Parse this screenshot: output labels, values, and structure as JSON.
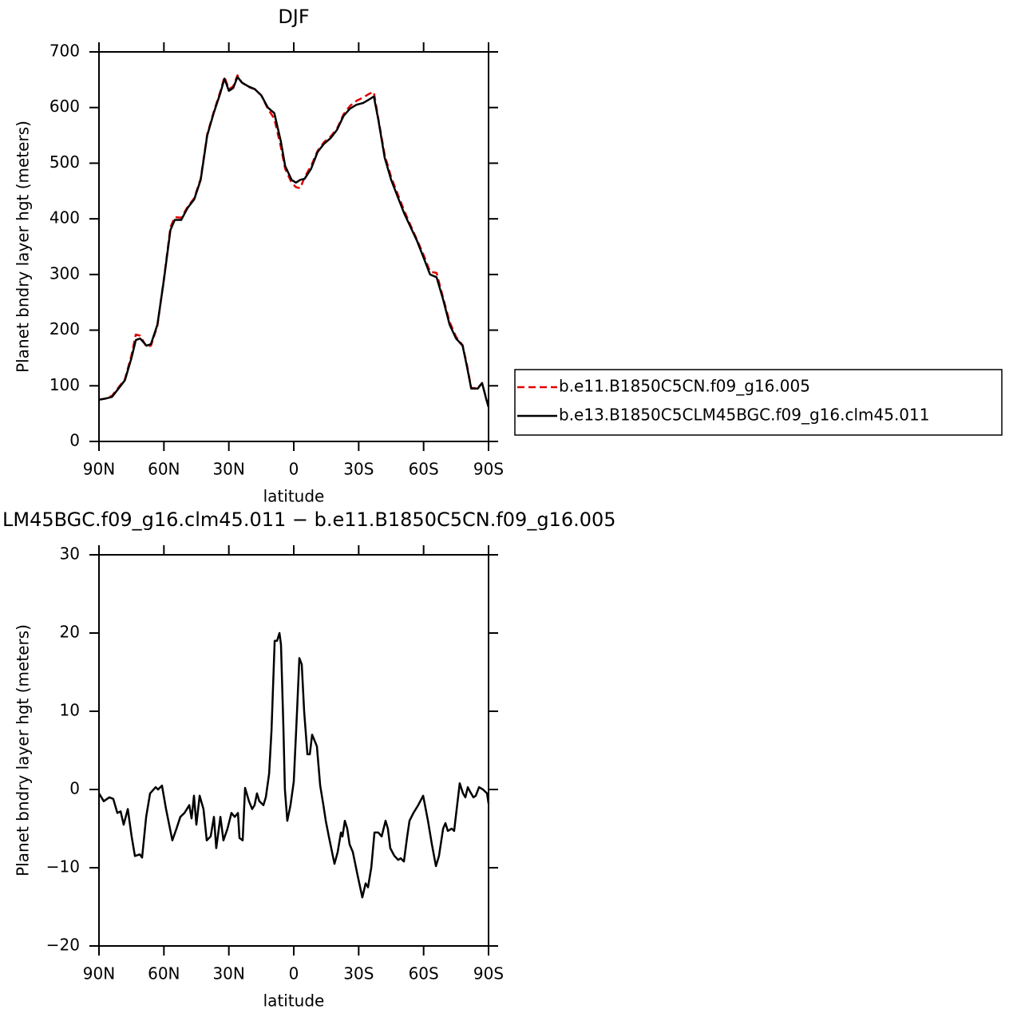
{
  "chart_data": [
    {
      "type": "line",
      "title": "DJF",
      "xlabel": "latitude",
      "ylabel": "Planet bndry layer hgt (meters)",
      "xlim": [
        90,
        -90
      ],
      "ylim": [
        0,
        700
      ],
      "xticks": [
        {
          "value": 90,
          "label": "90N"
        },
        {
          "value": 60,
          "label": "60N"
        },
        {
          "value": 30,
          "label": "30N"
        },
        0,
        {
          "value": -30,
          "label": "30S"
        },
        {
          "value": -60,
          "label": "60S"
        },
        {
          "value": -90,
          "label": "90S"
        }
      ],
      "yticks": [
        0,
        100,
        200,
        300,
        400,
        500,
        600,
        700
      ],
      "legend": "right",
      "x": [
        90,
        87,
        84,
        81,
        78,
        75,
        73,
        71,
        68,
        66,
        63,
        60,
        57,
        55,
        52,
        49,
        46,
        43,
        40,
        37,
        34,
        32,
        30,
        28,
        26,
        24,
        21,
        18,
        15,
        12,
        9,
        6,
        4,
        1,
        -1,
        -3,
        -5,
        -8,
        -11,
        -14,
        -17,
        -20,
        -23,
        -26,
        -29,
        -32,
        -35,
        -37,
        -39,
        -42,
        -45,
        -48,
        -51,
        -54,
        -57,
        -60,
        -63,
        -66,
        -69,
        -72,
        -75,
        -78,
        -80,
        -82,
        -85,
        -87,
        -89,
        -90
      ],
      "series": [
        {
          "name": "b.e11.B1850C5CN.f09_g16.005",
          "color": "#e00000",
          "linestyle": "dashed",
          "values": [
            75,
            77,
            82,
            97,
            112,
            155,
            192,
            190,
            170,
            172,
            208,
            292,
            385,
            403,
            402,
            422,
            437,
            472,
            552,
            592,
            628,
            655,
            633,
            638,
            658,
            645,
            637,
            633,
            622,
            598,
            580,
            530,
            490,
            465,
            457,
            455,
            475,
            495,
            522,
            538,
            548,
            562,
            588,
            603,
            612,
            618,
            625,
            628,
            582,
            515,
            475,
            445,
            415,
            388,
            362,
            335,
            305,
            303,
            258,
            215,
            188,
            173,
            138,
            96,
            96,
            105,
            76,
            62
          ]
        },
        {
          "name": "b.e13.B1850C5CLM45BGC.f09_g16.clm45.011",
          "color": "#000000",
          "linestyle": "solid",
          "values": [
            75,
            77,
            80,
            95,
            110,
            150,
            182,
            185,
            172,
            175,
            210,
            290,
            380,
            398,
            398,
            420,
            435,
            470,
            550,
            590,
            625,
            652,
            630,
            635,
            655,
            645,
            638,
            633,
            622,
            600,
            590,
            540,
            495,
            470,
            465,
            470,
            472,
            490,
            520,
            535,
            545,
            560,
            585,
            598,
            605,
            608,
            615,
            620,
            580,
            510,
            470,
            440,
            410,
            385,
            360,
            330,
            300,
            295,
            255,
            210,
            185,
            172,
            135,
            95,
            95,
            105,
            75,
            62
          ]
        }
      ]
    },
    {
      "type": "line",
      "title": "LM45BGC.f09_g16.clm45.011 − b.e11.B1850C5CN.f09_g16.005",
      "xlabel": "latitude",
      "ylabel": "Planet bndry layer hgt (meters)",
      "xlim": [
        90,
        -90
      ],
      "ylim": [
        -20,
        30
      ],
      "xticks": [
        {
          "value": 90,
          "label": "90N"
        },
        {
          "value": 60,
          "label": "60N"
        },
        {
          "value": 30,
          "label": "30N"
        },
        0,
        {
          "value": -30,
          "label": "30S"
        },
        {
          "value": -60,
          "label": "60S"
        },
        {
          "value": -90,
          "label": "90S"
        }
      ],
      "yticks": [
        {
          "value": -20,
          "label": "−20"
        },
        {
          "value": -10,
          "label": "−10"
        },
        0,
        10,
        20,
        30
      ],
      "x": [
        90,
        87.8,
        85.2,
        83.4,
        81.5,
        80.0,
        78.6,
        76.7,
        74.9,
        73.4,
        71.2,
        70.1,
        68.2,
        66.4,
        63.8,
        62.7,
        60.9,
        59.0,
        56.1,
        54.2,
        52.4,
        50.5,
        48.3,
        47.2,
        46.1,
        45.0,
        43.5,
        41.7,
        40.2,
        38.4,
        36.9,
        35.8,
        33.9,
        32.5,
        30.6,
        28.8,
        27.3,
        25.8,
        25.1,
        23.6,
        22.5,
        20.7,
        19.2,
        18.1,
        17.0,
        15.9,
        14.0,
        12.9,
        11.4,
        10.3,
        8.8,
        7.7,
        6.6,
        5.9,
        4.8,
        4.1,
        3.0,
        1.5,
        0,
        -1.5,
        -2.6,
        -3.7,
        -4.8,
        -6.3,
        -7.4,
        -8.5,
        -10.0,
        -10.7,
        -12.2,
        -13.7,
        -14.8,
        -16.2,
        -18.8,
        -20.3,
        -21.8,
        -22.5,
        -23.6,
        -24.7,
        -25.8,
        -27.3,
        -29.5,
        -31.7,
        -33.2,
        -34.3,
        -35.8,
        -37.3,
        -39.1,
        -40.6,
        -42.4,
        -43.5,
        -44.6,
        -46.5,
        -48.3,
        -49.4,
        -50.9,
        -52.4,
        -53.5,
        -55.3,
        -57.5,
        -59.8,
        -62.0,
        -63.8,
        -65.7,
        -67.1,
        -69.0,
        -70.1,
        -71.2,
        -73.0,
        -74.1,
        -75.3,
        -76.7,
        -78.2,
        -79.3,
        -80.4,
        -81.5,
        -83.0,
        -84.1,
        -85.6,
        -87.4,
        -89.3,
        -90
      ],
      "series": [
        {
          "color": "#000000",
          "linestyle": "solid",
          "values": [
            -0.5,
            -1.5,
            -1,
            -1.2,
            -3,
            -2.8,
            -4.5,
            -2.5,
            -6,
            -8.5,
            -8.3,
            -8.7,
            -3.5,
            -0.5,
            0.3,
            0,
            0.5,
            -2.5,
            -6.5,
            -5,
            -3.5,
            -3,
            -2,
            -3.7,
            -0.8,
            -4.5,
            -0.8,
            -2.5,
            -6.5,
            -6,
            -3.5,
            -7.5,
            -3.5,
            -6.5,
            -5,
            -3,
            -3.5,
            -3,
            -6.2,
            -6.5,
            0.2,
            -1.5,
            -2.5,
            -2,
            -0.5,
            -1.5,
            -2,
            -1,
            2,
            7.5,
            19,
            19,
            20,
            18.5,
            8,
            0,
            -4,
            -2,
            1,
            10,
            16.8,
            16,
            10,
            4.5,
            4.5,
            7,
            6,
            5.5,
            0.5,
            -2,
            -4,
            -6,
            -9.5,
            -8,
            -5.5,
            -6,
            -4,
            -5,
            -7,
            -8,
            -11,
            -13.8,
            -12,
            -12.5,
            -10,
            -5.5,
            -5.5,
            -6,
            -4,
            -5,
            -7.5,
            -8.5,
            -9,
            -8.8,
            -9.2,
            -6,
            -4,
            -3,
            -2,
            -0.8,
            -4,
            -7,
            -9.8,
            -8.5,
            -5,
            -4.3,
            -5.3,
            -5,
            -5.3,
            -2.5,
            0.8,
            -0.5,
            -1,
            0.3,
            -0.3,
            -1,
            -0.8,
            0.3,
            0,
            -0.5,
            -1.8
          ]
        }
      ]
    }
  ]
}
